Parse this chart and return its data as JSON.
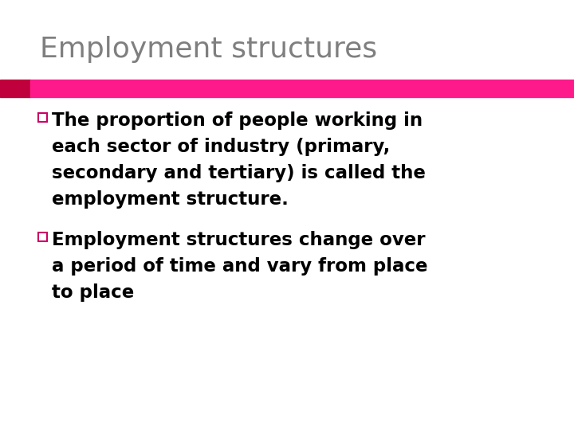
{
  "title": "Employment structures",
  "title_color": "#7f7f7f",
  "title_fontsize": 26,
  "bar_color_left": "#c0003c",
  "bar_color_main": "#ff1a8c",
  "background_color": "#ffffff",
  "body_color": "#000000",
  "body_fontsize": 16.5,
  "bullet_square_color": "#cc0066",
  "bullet1_lines": [
    "The proportion of people working in",
    "each sector of industry (primary,",
    "secondary and tertiary) is called the",
    "employment structure."
  ],
  "bullet2_lines": [
    "Employment structures change over",
    "a period of time and vary from place",
    "to place"
  ]
}
